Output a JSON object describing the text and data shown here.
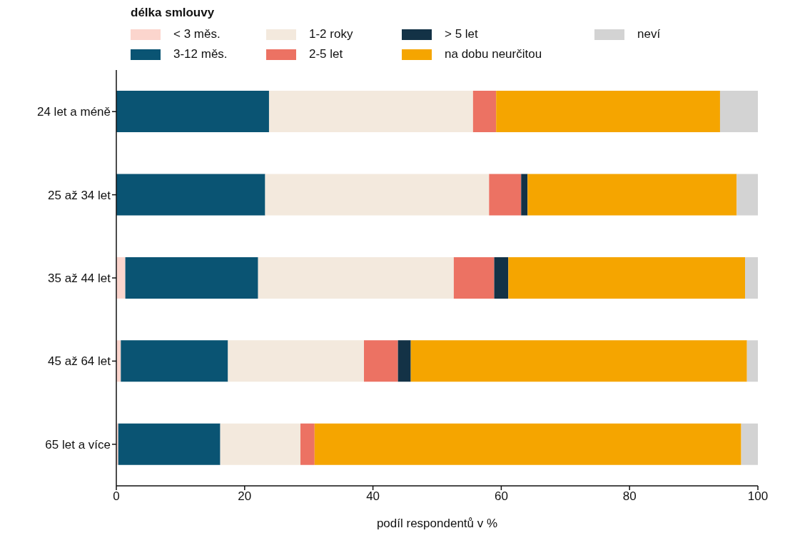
{
  "chart_data": {
    "type": "bar",
    "orientation": "horizontal",
    "stacked": true,
    "xlabel": "podíl respondentů v %",
    "legend_title": "délka smlouvy",
    "legend": "top",
    "grid": false,
    "categories": [
      "24 let a méně",
      "25 až 34 let",
      "35 až 44 let",
      "45 až 64 let",
      "65 let a více"
    ],
    "xlim": [
      0,
      100
    ],
    "xticks": [
      0,
      20,
      40,
      60,
      80,
      100
    ],
    "series": [
      {
        "name": "< 3 měs.",
        "color": "#fbd5cd",
        "values": [
          0,
          0,
          1.4,
          0.7,
          0.3
        ]
      },
      {
        "name": "3-12 měs.",
        "color": "#0a5473",
        "values": [
          23.8,
          23.2,
          20.7,
          16.7,
          15.9
        ]
      },
      {
        "name": "1-2 roky",
        "color": "#f3e9dd",
        "values": [
          31.8,
          34.9,
          30.5,
          21.2,
          12.5
        ]
      },
      {
        "name": "2-5 let",
        "color": "#ec7263",
        "values": [
          3.6,
          5.0,
          6.3,
          5.3,
          2.2
        ]
      },
      {
        "name": "> 5 let",
        "color": "#133246",
        "values": [
          0,
          1.0,
          2.2,
          2.0,
          0
        ]
      },
      {
        "name": "na dobu neurčitou",
        "color": "#f5a500",
        "values": [
          34.9,
          32.6,
          36.9,
          52.4,
          66.5
        ]
      },
      {
        "name": "neví",
        "color": "#d3d3d3",
        "values": [
          5.9,
          3.3,
          2.0,
          1.7,
          2.7
        ]
      }
    ]
  }
}
